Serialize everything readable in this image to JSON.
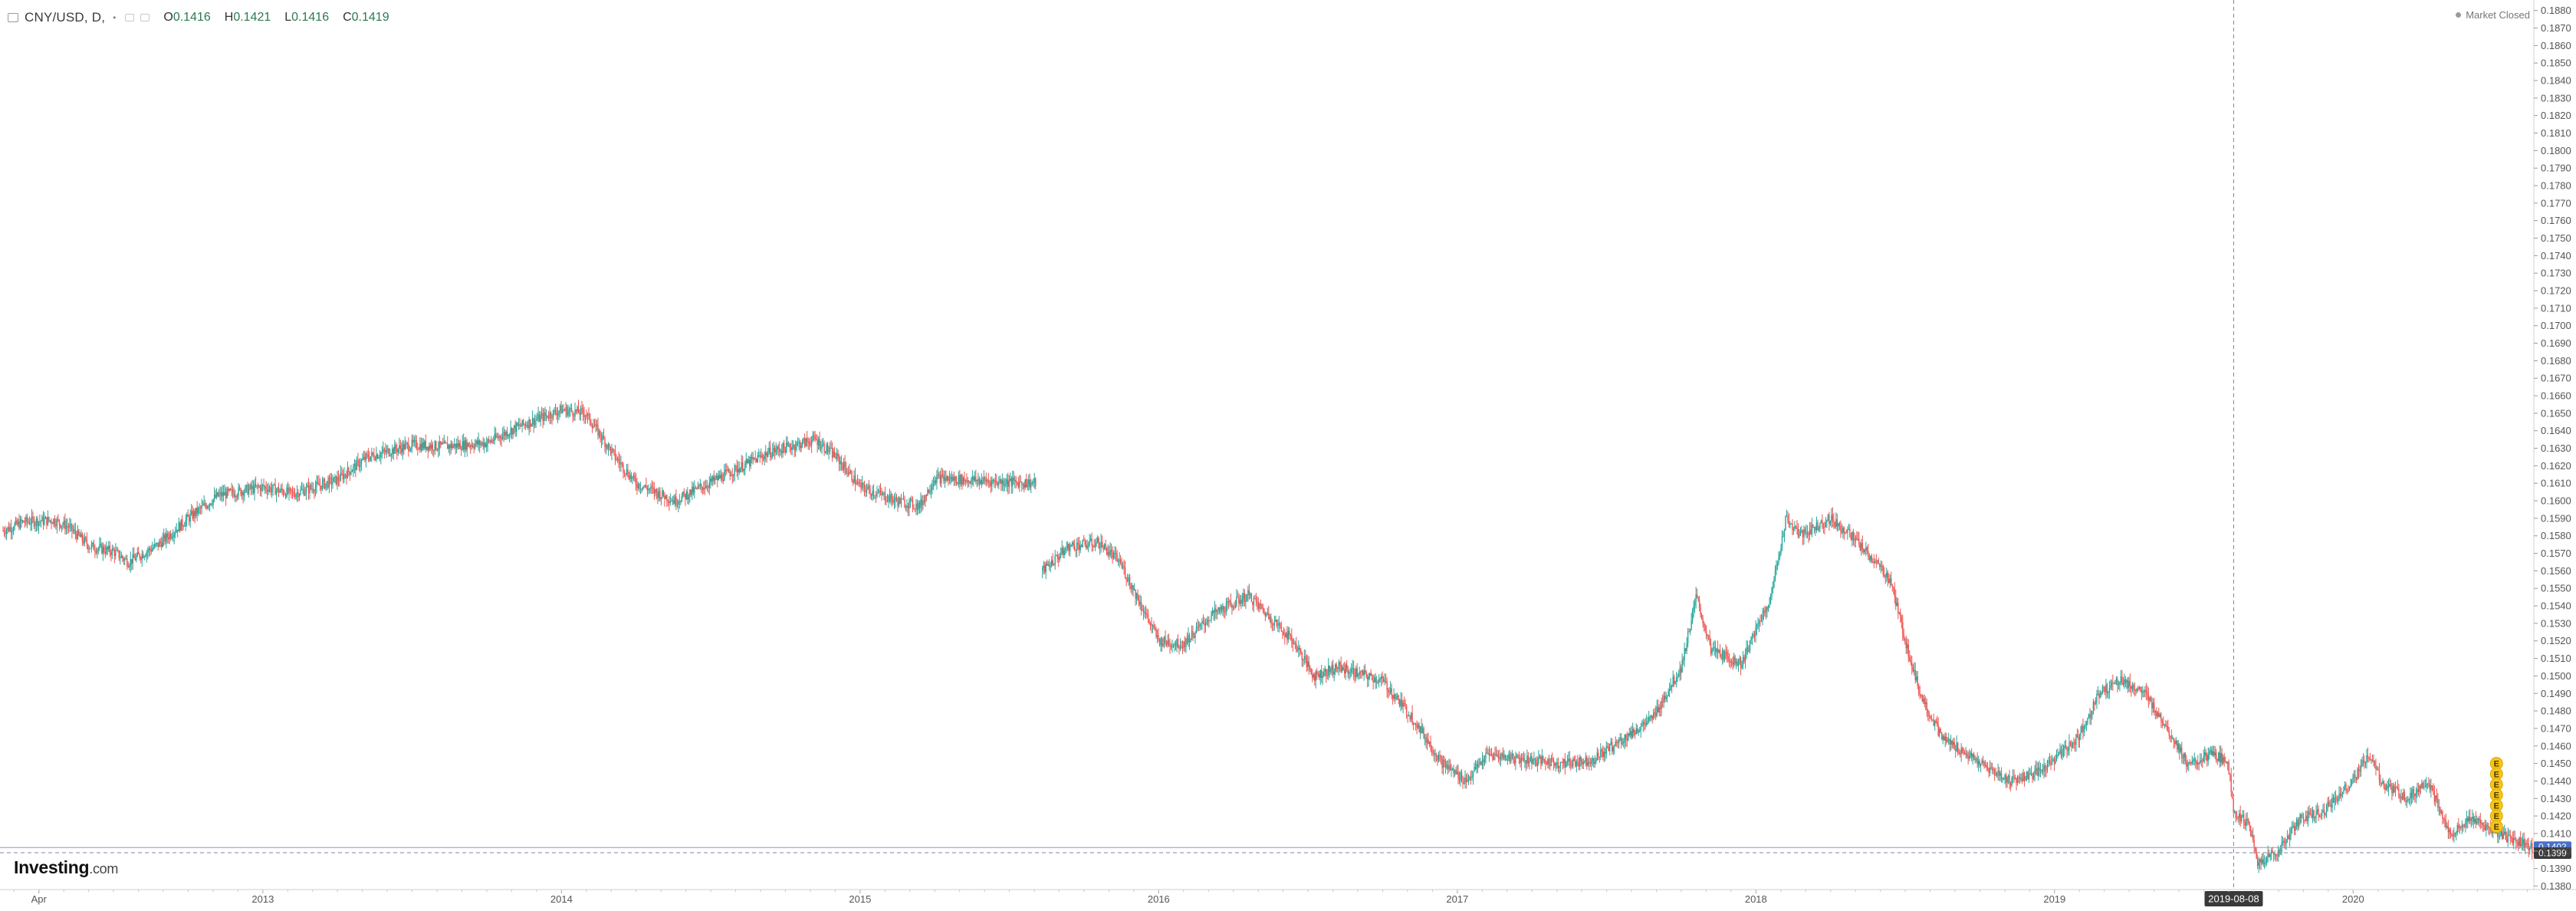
{
  "header": {
    "symbol": "CNY/USD, D,",
    "open_label": "O",
    "open_value": "0.1416",
    "high_label": "H",
    "high_value": "0.1421",
    "low_label": "L",
    "low_value": "0.1416",
    "close_label": "C",
    "close_value": "0.1419"
  },
  "market_status": "Market Closed",
  "logo": {
    "brand": "Investing",
    "suffix": ".com"
  },
  "colors": {
    "up": "#26a69a",
    "down": "#ef5350",
    "axis_text": "#555555",
    "grid": "#e6e6e6",
    "crosshair_label_bg": "#3a3a3a",
    "current_price_bg": "#4a6fc5",
    "earnings_marker": "#f5c518"
  },
  "chart_data": {
    "type": "candlestick",
    "title": "CNY/USD, D,",
    "y_axis": {
      "position": "right",
      "ylim": [
        0.1378,
        0.1886
      ],
      "ticks": [
        "0.1880",
        "0.1870",
        "0.1860",
        "0.1850",
        "0.1840",
        "0.1830",
        "0.1820",
        "0.1810",
        "0.1800",
        "0.1790",
        "0.1780",
        "0.1770",
        "0.1760",
        "0.1750",
        "0.1740",
        "0.1730",
        "0.1720",
        "0.1710",
        "0.1700",
        "0.1690",
        "0.1680",
        "0.1670",
        "0.1660",
        "0.1650",
        "0.1640",
        "0.1630",
        "0.1620",
        "0.1610",
        "0.1600",
        "0.1590",
        "0.1580",
        "0.1570",
        "0.1560",
        "0.1550",
        "0.1540",
        "0.1530",
        "0.1520",
        "0.1510",
        "0.1500",
        "0.1490",
        "0.1480",
        "0.1470",
        "0.1460",
        "0.1450",
        "0.1440",
        "0.1430",
        "0.1420",
        "0.1410",
        "0.1400",
        "0.1390",
        "0.1380"
      ]
    },
    "x_axis": {
      "range": [
        2012.13,
        2020.6
      ],
      "ticks": [
        {
          "label": "Apr",
          "x": 2012.25
        },
        {
          "label": "2013",
          "x": 2013.0
        },
        {
          "label": "2014",
          "x": 2014.0
        },
        {
          "label": "2015",
          "x": 2015.0
        },
        {
          "label": "2016",
          "x": 2016.0
        },
        {
          "label": "2017",
          "x": 2017.0
        },
        {
          "label": "2018",
          "x": 2018.0
        },
        {
          "label": "2019",
          "x": 2019.0
        },
        {
          "label": "2020",
          "x": 2020.0
        }
      ]
    },
    "grid": false,
    "crosshair": {
      "x": 2019.6,
      "label": "2019-08-08",
      "price": 0.1399,
      "price_label": "0.1399"
    },
    "current_price": {
      "value": 0.1402,
      "label": "0.1402"
    },
    "events": [
      {
        "label": "E",
        "x": 2020.48,
        "y": 0.145
      },
      {
        "label": "E",
        "x": 2020.48,
        "y": 0.1444
      },
      {
        "label": "E",
        "x": 2020.48,
        "y": 0.1438
      },
      {
        "label": "E",
        "x": 2020.48,
        "y": 0.1432
      },
      {
        "label": "E",
        "x": 2020.48,
        "y": 0.1426
      },
      {
        "label": "E",
        "x": 2020.48,
        "y": 0.142
      },
      {
        "label": "E",
        "x": 2020.48,
        "y": 0.1414
      }
    ],
    "gaps": [
      [
        2015.59,
        2015.61
      ]
    ],
    "series": [
      {
        "price_path": [
          [
            2012.13,
            0.1583
          ],
          [
            2012.2,
            0.1588
          ],
          [
            2012.3,
            0.1589
          ],
          [
            2012.35,
            0.1585
          ],
          [
            2012.42,
            0.1574
          ],
          [
            2012.5,
            0.1571
          ],
          [
            2012.55,
            0.1565
          ],
          [
            2012.65,
            0.1575
          ],
          [
            2012.75,
            0.159
          ],
          [
            2012.85,
            0.1603
          ],
          [
            2013.0,
            0.1608
          ],
          [
            2013.1,
            0.1604
          ],
          [
            2013.25,
            0.1612
          ],
          [
            2013.35,
            0.1625
          ],
          [
            2013.5,
            0.1632
          ],
          [
            2013.6,
            0.1631
          ],
          [
            2013.75,
            0.1633
          ],
          [
            2013.85,
            0.1642
          ],
          [
            2014.0,
            0.1652
          ],
          [
            2014.08,
            0.165
          ],
          [
            2014.18,
            0.1625
          ],
          [
            2014.25,
            0.161
          ],
          [
            2014.38,
            0.16
          ],
          [
            2014.55,
            0.1615
          ],
          [
            2014.7,
            0.1628
          ],
          [
            2014.85,
            0.1635
          ],
          [
            2014.92,
            0.1625
          ],
          [
            2015.0,
            0.1608
          ],
          [
            2015.12,
            0.16
          ],
          [
            2015.2,
            0.1597
          ],
          [
            2015.25,
            0.1613
          ],
          [
            2015.35,
            0.1612
          ],
          [
            2015.45,
            0.1611
          ],
          [
            2015.59,
            0.161
          ],
          [
            2015.61,
            0.156
          ],
          [
            2015.7,
            0.1574
          ],
          [
            2015.8,
            0.1576
          ],
          [
            2015.87,
            0.1565
          ],
          [
            2016.0,
            0.152
          ],
          [
            2016.08,
            0.1518
          ],
          [
            2016.18,
            0.1535
          ],
          [
            2016.3,
            0.1546
          ],
          [
            2016.45,
            0.152
          ],
          [
            2016.52,
            0.15
          ],
          [
            2016.6,
            0.1505
          ],
          [
            2016.75,
            0.1497
          ],
          [
            2016.85,
            0.1476
          ],
          [
            2016.95,
            0.145
          ],
          [
            2017.03,
            0.144
          ],
          [
            2017.1,
            0.1455
          ],
          [
            2017.2,
            0.1453
          ],
          [
            2017.35,
            0.145
          ],
          [
            2017.45,
            0.1452
          ],
          [
            2017.52,
            0.146
          ],
          [
            2017.65,
            0.1475
          ],
          [
            2017.75,
            0.1505
          ],
          [
            2017.8,
            0.1545
          ],
          [
            2017.85,
            0.1515
          ],
          [
            2017.95,
            0.1507
          ],
          [
            2018.05,
            0.1545
          ],
          [
            2018.1,
            0.159
          ],
          [
            2018.15,
            0.158
          ],
          [
            2018.25,
            0.159
          ],
          [
            2018.32,
            0.158
          ],
          [
            2018.45,
            0.1555
          ],
          [
            2018.5,
            0.152
          ],
          [
            2018.55,
            0.149
          ],
          [
            2018.62,
            0.1465
          ],
          [
            2018.75,
            0.145
          ],
          [
            2018.85,
            0.144
          ],
          [
            2018.95,
            0.1445
          ],
          [
            2019.08,
            0.1465
          ],
          [
            2019.15,
            0.149
          ],
          [
            2019.22,
            0.1498
          ],
          [
            2019.3,
            0.149
          ],
          [
            2019.38,
            0.147
          ],
          [
            2019.45,
            0.1448
          ],
          [
            2019.52,
            0.1455
          ],
          [
            2019.58,
            0.1452
          ],
          [
            2019.6,
            0.1423
          ],
          [
            2019.65,
            0.1415
          ],
          [
            2019.68,
            0.1393
          ],
          [
            2019.75,
            0.14
          ],
          [
            2019.82,
            0.1418
          ],
          [
            2019.9,
            0.1423
          ],
          [
            2020.0,
            0.144
          ],
          [
            2020.05,
            0.1455
          ],
          [
            2020.1,
            0.1438
          ],
          [
            2020.18,
            0.143
          ],
          [
            2020.25,
            0.144
          ],
          [
            2020.32,
            0.141
          ],
          [
            2020.4,
            0.1418
          ],
          [
            2020.48,
            0.141
          ],
          [
            2020.6,
            0.1402
          ]
        ]
      }
    ]
  }
}
